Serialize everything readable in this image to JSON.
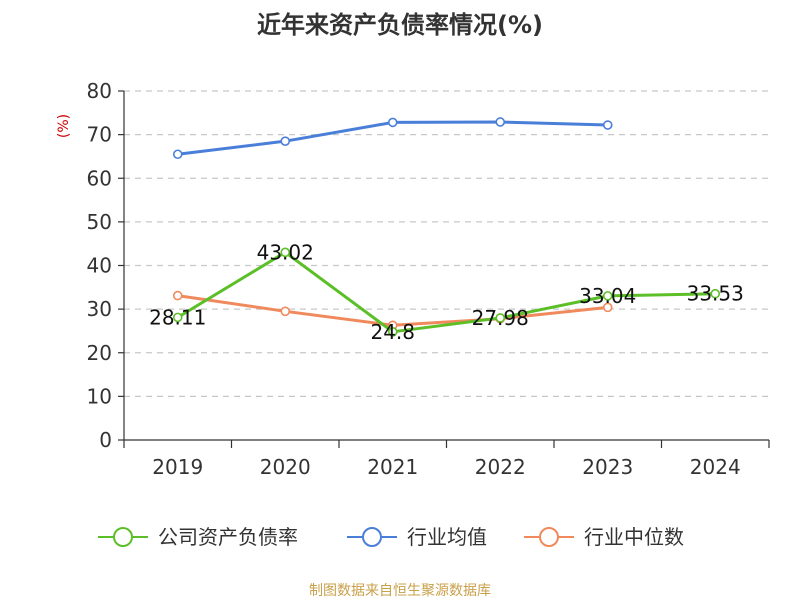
{
  "chart_data": {
    "type": "line",
    "title": "近年来资产负债率情况(%)",
    "ylabel": "(%)",
    "xlabel": "",
    "categories": [
      "2019",
      "2020",
      "2021",
      "2022",
      "2023",
      "2024"
    ],
    "ylim": [
      0,
      80
    ],
    "yticks": [
      0,
      10,
      20,
      30,
      40,
      50,
      60,
      70,
      80
    ],
    "grid": true,
    "legend_position": "bottom",
    "series": [
      {
        "name": "公司资产负债率",
        "color": "#5cbf28",
        "values": [
          28.11,
          43.02,
          24.8,
          27.98,
          33.04,
          33.53
        ],
        "labels": [
          "28.11",
          "43.02",
          "24.8",
          "27.98",
          "33.04",
          "33.53"
        ]
      },
      {
        "name": "行业均值",
        "color": "#4a7fd9",
        "values": [
          65.5,
          68.5,
          72.8,
          72.9,
          72.2,
          null
        ]
      },
      {
        "name": "行业中位数",
        "color": "#f08a5d",
        "values": [
          33.1,
          29.5,
          26.3,
          27.8,
          30.4,
          null
        ]
      }
    ]
  },
  "footer": {
    "source": "制图数据来自恒生聚源数据库"
  }
}
